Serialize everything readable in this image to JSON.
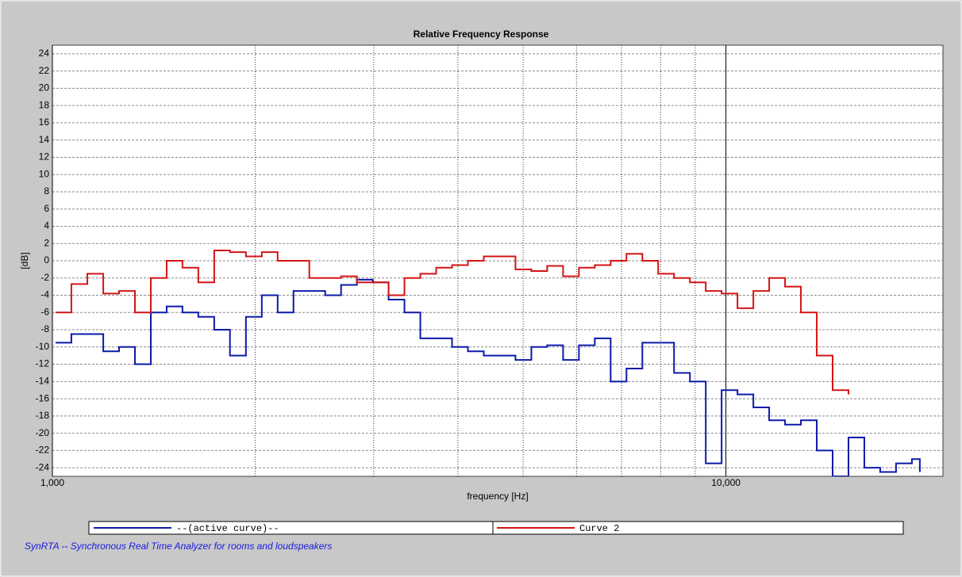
{
  "chart_data": {
    "type": "line",
    "shape": "step",
    "title": "Relative Frequency Response",
    "x_label": "frequency [Hz]",
    "y_label": "[dB]",
    "log_x": true,
    "xlim": [
      1000,
      21000
    ],
    "xticks": [
      {
        "value": 1000,
        "label": "1,000"
      },
      {
        "value": 10000,
        "label": "10,000"
      }
    ],
    "x_minor_grid": [
      2000,
      3000,
      4000,
      5000,
      6000,
      7000,
      8000,
      9000
    ],
    "ylim": [
      -25,
      25
    ],
    "yticks": [
      -24,
      -22,
      -20,
      -18,
      -16,
      -14,
      -12,
      -10,
      -8,
      -6,
      -4,
      -2,
      0,
      2,
      4,
      6,
      8,
      10,
      12,
      14,
      16,
      18,
      20,
      22,
      24
    ],
    "grid": true,
    "legend": "bottom",
    "x": [
      1011,
      1067,
      1127,
      1190,
      1256,
      1326,
      1400,
      1478,
      1560,
      1647,
      1739,
      1835,
      1938,
      2046,
      2160,
      2280,
      2407,
      2541,
      2683,
      2832,
      2990,
      3156,
      3332,
      3518,
      3714,
      3921,
      4139,
      4370,
      4613,
      4870,
      5142,
      5428,
      5731,
      6050,
      6387,
      6743,
      7118,
      7515,
      7933,
      8375,
      8842,
      9334,
      9854,
      10403,
      10983,
      11594,
      12240,
      12922,
      13642,
      14402,
      15204,
      16051,
      16945,
      17889,
      18886,
      19405
    ],
    "series": [
      {
        "name": "--(active curve)--",
        "color": "#0c1aa8",
        "values": [
          -9.5,
          -8.5,
          -8.5,
          -10.5,
          -10,
          -12,
          -6,
          -5.3,
          -6,
          -6.5,
          -8,
          -11,
          -6.5,
          -4,
          -6,
          -3.5,
          -3.5,
          -4,
          -2.8,
          -2.2,
          -2.5,
          -4.5,
          -6,
          -9,
          -9,
          -10,
          -10.5,
          -11,
          -11,
          -11.5,
          -10,
          -9.8,
          -11.5,
          -9.8,
          -9,
          -14,
          -12.5,
          -9.5,
          -9.5,
          -13,
          -14,
          -23.5,
          -15,
          -15.5,
          -17,
          -18.5,
          -19,
          -18.5,
          -22,
          -25,
          -20.5,
          -24,
          -24.5,
          -23.5,
          -23,
          -24.5
        ]
      },
      {
        "name": "Curve 2",
        "color": "#d41414",
        "values": [
          -6,
          -2.7,
          -1.5,
          -3.8,
          -3.5,
          -6,
          -2,
          0,
          -0.8,
          -2.5,
          1.2,
          1,
          0.5,
          1,
          0,
          0,
          -2,
          -2,
          -1.8,
          -2.5,
          -2.5,
          -4,
          -2,
          -1.5,
          -0.8,
          -0.5,
          0,
          0.5,
          0.5,
          -1,
          -1.2,
          -0.6,
          -1.8,
          -0.8,
          -0.5,
          0,
          0.8,
          0,
          -1.5,
          -2,
          -2.5,
          -3.5,
          -3.8,
          -5.5,
          -3.5,
          -2,
          -3,
          -6,
          -11,
          -15,
          -15.5,
          null,
          null,
          null,
          null,
          null
        ]
      }
    ]
  },
  "footer": "SynRTA -- Synchronous Real Time Analyzer for rooms and loudspeakers"
}
